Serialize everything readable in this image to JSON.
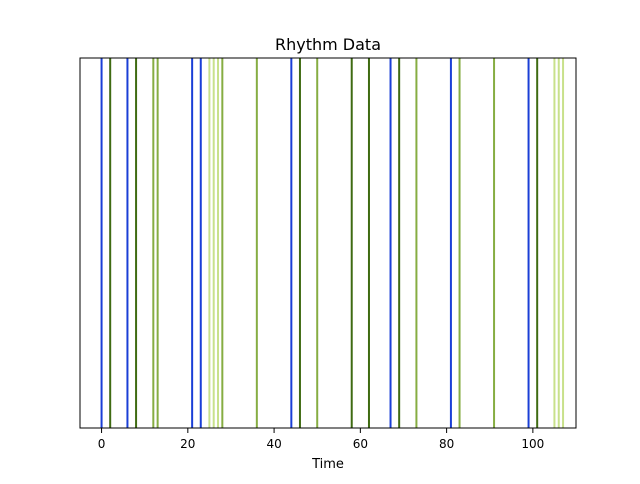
{
  "chart_data": {
    "type": "event-lines",
    "title": "Rhythm Data",
    "xlabel": "Time",
    "ylabel": "",
    "xlim": [
      -5,
      110
    ],
    "xticks": [
      0,
      20,
      40,
      60,
      80,
      100
    ],
    "show_yticks": false,
    "grid": false,
    "series": [
      {
        "color": "#1a3fd6",
        "x": [
          0,
          6,
          21,
          23,
          44,
          67,
          81,
          99
        ]
      },
      {
        "color": "#3f6b12",
        "x": [
          2,
          8,
          46,
          58,
          62,
          69,
          101
        ]
      },
      {
        "color": "#86ad42",
        "x": [
          12,
          13,
          28,
          36,
          50,
          73,
          83,
          91
        ]
      },
      {
        "color": "#c8e18a",
        "x": [
          25,
          26,
          27,
          105,
          106,
          107
        ]
      }
    ]
  }
}
